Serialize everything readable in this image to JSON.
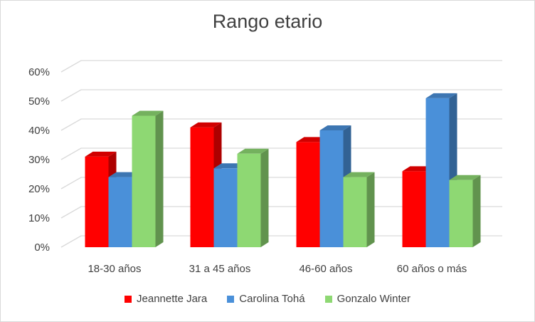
{
  "chart_data": {
    "type": "bar",
    "title": "Rango etario",
    "categories": [
      "18-30 años",
      "31 a 45 años",
      "46-60 años",
      "60 años o más"
    ],
    "series": [
      {
        "name": "Jeannette Jara",
        "color": "#ff0000",
        "values": [
          31,
          41,
          36,
          26
        ]
      },
      {
        "name": "Carolina Tohá",
        "color": "#4a90d9",
        "values": [
          24,
          27,
          40,
          51
        ]
      },
      {
        "name": "Gonzalo Winter",
        "color": "#8ed873",
        "values": [
          45,
          32,
          24,
          23
        ]
      }
    ],
    "y_ticks": [
      "0%",
      "10%",
      "20%",
      "30%",
      "40%",
      "50%",
      "60%"
    ],
    "ylim": [
      0,
      60
    ],
    "y_unit": "%",
    "grid": true,
    "legend_position": "bottom",
    "style": "3d-clustered-column"
  }
}
